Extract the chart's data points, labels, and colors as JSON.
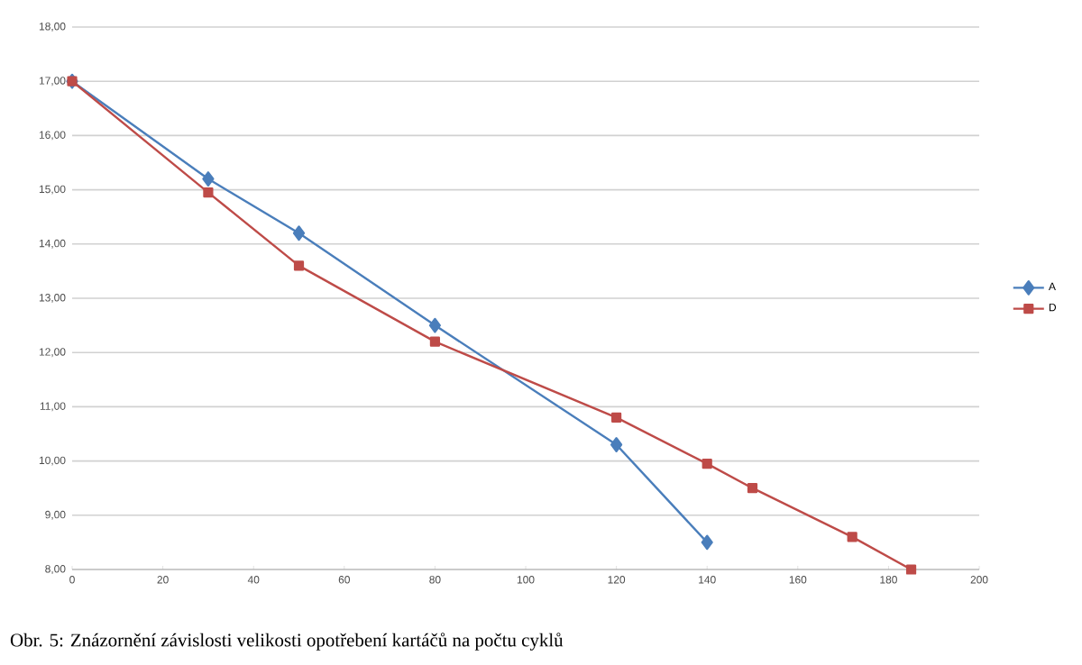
{
  "chart_data": {
    "type": "line",
    "x": [
      0,
      30,
      50,
      80,
      120,
      140
    ],
    "series": [
      {
        "name": "A",
        "color": "#4a7ebb",
        "marker": "diamond",
        "values": [
          17.0,
          15.2,
          14.2,
          12.5,
          10.3,
          8.5
        ]
      },
      {
        "name": "D",
        "color": "#be4b48",
        "marker": "square",
        "x": [
          0,
          30,
          50,
          80,
          120,
          140,
          150,
          172,
          185
        ],
        "values": [
          17.0,
          14.95,
          13.6,
          12.2,
          10.8,
          9.95,
          9.5,
          8.6,
          8.0
        ]
      }
    ],
    "xlim": [
      0,
      200
    ],
    "xticks": [
      0,
      20,
      40,
      60,
      80,
      100,
      120,
      140,
      160,
      180,
      200
    ],
    "ylim": [
      8,
      18
    ],
    "yticks": [
      {
        "value": 8,
        "label": "8,00"
      },
      {
        "value": 9,
        "label": "9,00"
      },
      {
        "value": 10,
        "label": "10,00"
      },
      {
        "value": 11,
        "label": "11,00"
      },
      {
        "value": 12,
        "label": "12,00"
      },
      {
        "value": 13,
        "label": "13,00"
      },
      {
        "value": 14,
        "label": "14,00"
      },
      {
        "value": 15,
        "label": "15,00"
      },
      {
        "value": 16,
        "label": "16,00"
      },
      {
        "value": 17,
        "label": "17,00"
      },
      {
        "value": 18,
        "label": "18,00"
      }
    ],
    "grid": "y",
    "legend": "right",
    "line_style": "solid",
    "annotations": [
      "Obr. 5: Znázornění závislosti velikosti opotřebení kartáčů na počtu cyklů"
    ]
  }
}
